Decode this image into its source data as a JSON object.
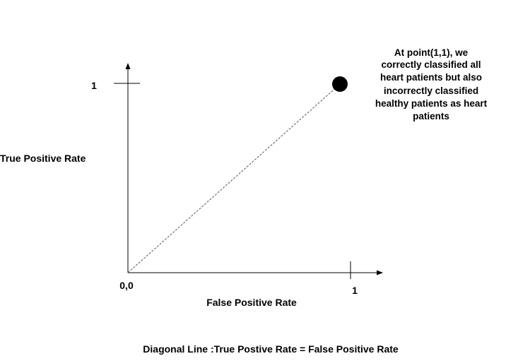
{
  "diagram": {
    "y_axis_label": "True Positive Rate",
    "x_axis_label": "False Positive Rate",
    "origin_label": "0,0",
    "y_tick_label": "1",
    "x_tick_label": "1",
    "annotation_lines": [
      "At point(1,1), we",
      "correctly classified all",
      "heart patients but also",
      "incorrectly classified",
      "healthy patients as heart",
      "patients"
    ],
    "caption": "Diagonal Line :True Postive Rate = False Positive Rate"
  },
  "colors": {
    "axis": "#000000",
    "diagonal": "#555555",
    "point": "#000000",
    "text": "#000000"
  }
}
